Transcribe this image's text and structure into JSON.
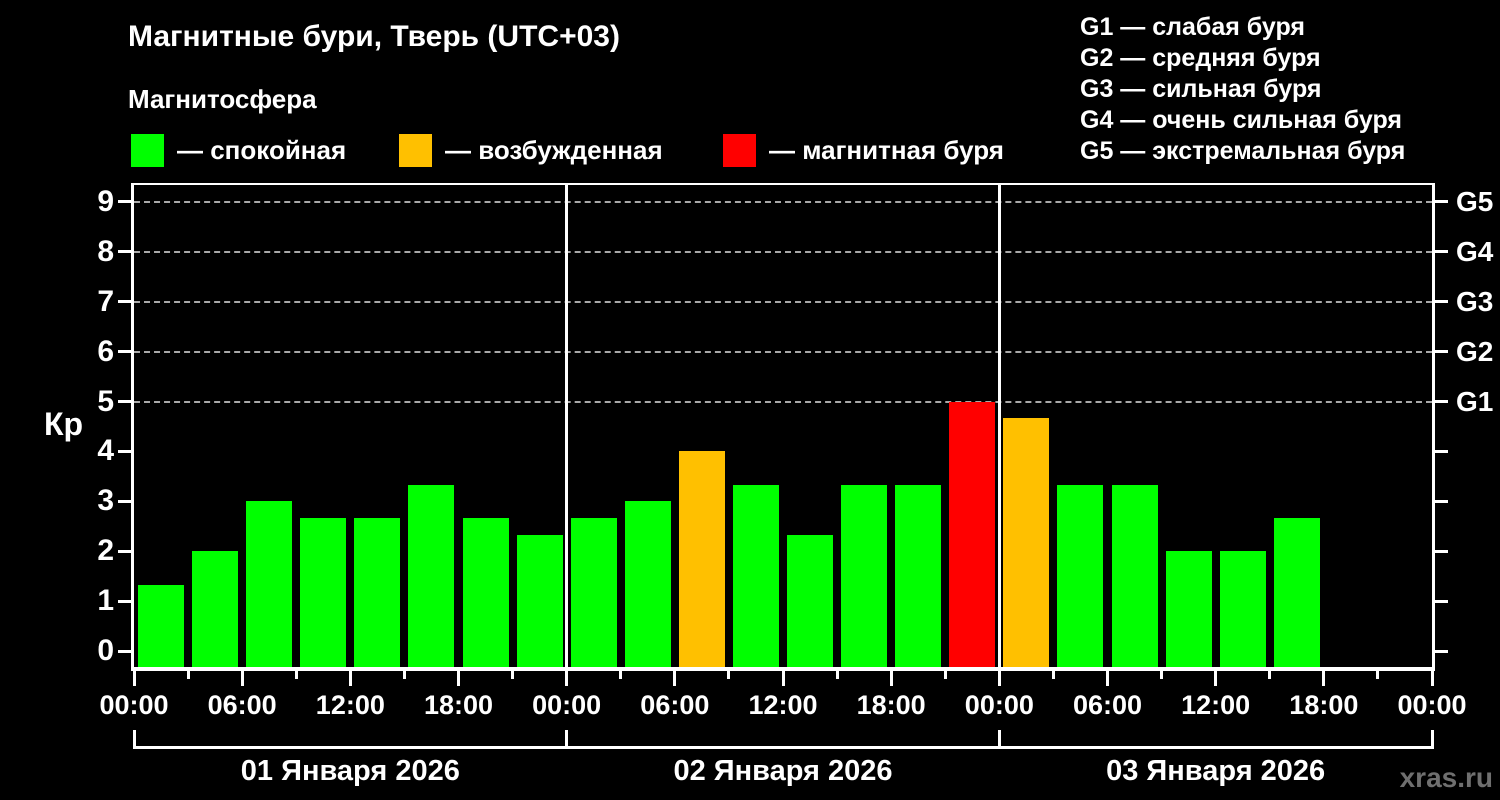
{
  "colors": {
    "background": "#000000",
    "calm": "#00FF00",
    "excited": "#FFC000",
    "storm": "#FF0000",
    "grid": "#A9A9A9",
    "axis": "#FFFFFF",
    "watermark": "#6F6F6F"
  },
  "header": {
    "title": "Магнитные бури, Тверь (UTC+03)",
    "subtitle": "Магнитосфера"
  },
  "legend": [
    {
      "label": "— спокойная",
      "state": "calm"
    },
    {
      "label": "— возбужденная",
      "state": "excited"
    },
    {
      "label": "— магнитная буря",
      "state": "storm"
    }
  ],
  "g_scale_legend": [
    "G1 — слабая буря",
    "G2 — средняя буря",
    "G3 — сильная буря",
    "G4 — очень сильная буря",
    "G5 — экстремальная буря"
  ],
  "watermark": "xras.ru",
  "chart_data": {
    "type": "bar",
    "ylabel": "Кр",
    "kp_axis": {
      "min": -0.4,
      "max": 9.4,
      "ticks": [
        0,
        1,
        2,
        3,
        4,
        5,
        6,
        7,
        8,
        9
      ]
    },
    "right_axis": [
      {
        "kp": 5,
        "label": "G1"
      },
      {
        "kp": 6,
        "label": "G2"
      },
      {
        "kp": 7,
        "label": "G3"
      },
      {
        "kp": 8,
        "label": "G4"
      },
      {
        "kp": 9,
        "label": "G5"
      }
    ],
    "grid_dashed_levels": [
      5,
      6,
      7,
      8,
      9
    ],
    "hours_per_bar": 3,
    "bars_per_day": 8,
    "time_tick_labels": [
      "00:00",
      "06:00",
      "12:00",
      "18:00",
      "00:00",
      "06:00",
      "12:00",
      "18:00",
      "00:00",
      "06:00",
      "12:00",
      "18:00",
      "00:00"
    ],
    "days": [
      {
        "date": "01 Января 2026",
        "bars": [
          {
            "kp": 1.33,
            "state": "calm"
          },
          {
            "kp": 2.0,
            "state": "calm"
          },
          {
            "kp": 3.0,
            "state": "calm"
          },
          {
            "kp": 2.67,
            "state": "calm"
          },
          {
            "kp": 2.67,
            "state": "calm"
          },
          {
            "kp": 3.33,
            "state": "calm"
          },
          {
            "kp": 2.67,
            "state": "calm"
          },
          {
            "kp": 2.33,
            "state": "calm"
          }
        ]
      },
      {
        "date": "02 Января 2026",
        "bars": [
          {
            "kp": 2.67,
            "state": "calm"
          },
          {
            "kp": 3.0,
            "state": "calm"
          },
          {
            "kp": 4.0,
            "state": "excited"
          },
          {
            "kp": 3.33,
            "state": "calm"
          },
          {
            "kp": 2.33,
            "state": "calm"
          },
          {
            "kp": 3.33,
            "state": "calm"
          },
          {
            "kp": 3.33,
            "state": "calm"
          },
          {
            "kp": 5.0,
            "state": "storm"
          }
        ]
      },
      {
        "date": "03 Января 2026",
        "bars": [
          {
            "kp": 4.67,
            "state": "excited"
          },
          {
            "kp": 3.33,
            "state": "calm"
          },
          {
            "kp": 3.33,
            "state": "calm"
          },
          {
            "kp": 2.0,
            "state": "calm"
          },
          {
            "kp": 2.0,
            "state": "calm"
          },
          {
            "kp": 2.67,
            "state": "calm"
          },
          null,
          null
        ]
      }
    ]
  }
}
